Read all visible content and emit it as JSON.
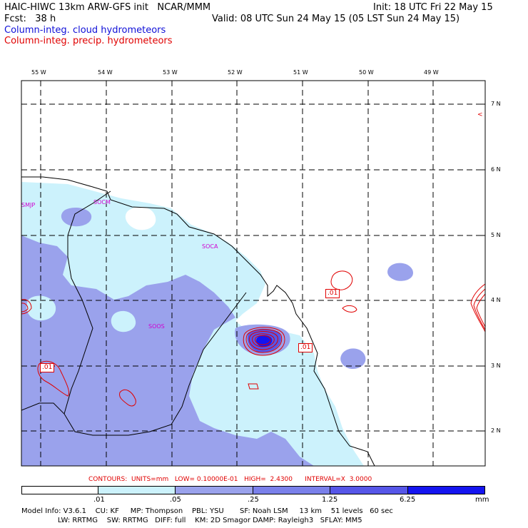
{
  "header": {
    "line1_left": "HAIC-HIWC 13km ARW-GFS init   NCAR/MMM",
    "line1_right": "Init: 18 UTC Fri 22 May 15",
    "line2_left": "Fcst:   38 h",
    "line2_right": "Valid: 08 UTC Sun 24 May 15 (05 LST Sun 24 May 15)",
    "field1": "Column-integ. cloud hydrometeors",
    "field2": "Column-integ. precip. hydrometeors"
  },
  "colors": {
    "field1": "#1010d8",
    "field2": "#e00000",
    "shade_light": "#ccf2fc",
    "shade_mid": "#9aa2ec",
    "shade_dark": "#5656e8",
    "shade_darkest": "#1414f0",
    "contour": "#e00000",
    "station": "#d000d0"
  },
  "map": {
    "lon_labels": [
      "55 W",
      "54 W",
      "53 W",
      "52 W",
      "51 W",
      "50 W",
      "49 W"
    ],
    "lat_labels": [
      "7 N",
      "6 N",
      "5 N",
      "4 N",
      "3 N",
      "2 N"
    ],
    "stations": [
      {
        "name": "SMJP"
      },
      {
        "name": "SOCM"
      },
      {
        "name": "SOCA"
      },
      {
        "name": "SOOS"
      }
    ],
    "contour_labels": [
      ".01",
      ".01",
      ".01"
    ],
    "corner_mark": "<"
  },
  "footer": {
    "contours_line": "CONTOURS:  UNITS=mm   LOW= 0.10000E-01   HIGH=  2.4300      INTERVAL=X  3.0000",
    "colorbar_labels": [
      ".01",
      ".05",
      ".25",
      "1.25",
      "6.25"
    ],
    "colorbar_unit": "mm",
    "model_info_1": "Model Info: V3.6.1    CU: KF     MP: Thompson    PBL: YSU       SF: Noah LSM     13 km    51 levels   60 sec",
    "model_info_2": "                LW: RRTMG    SW: RRTMG   DIFF: full    KM: 2D Smagor DAMP: Rayleigh3   SFLAY: MM5"
  }
}
